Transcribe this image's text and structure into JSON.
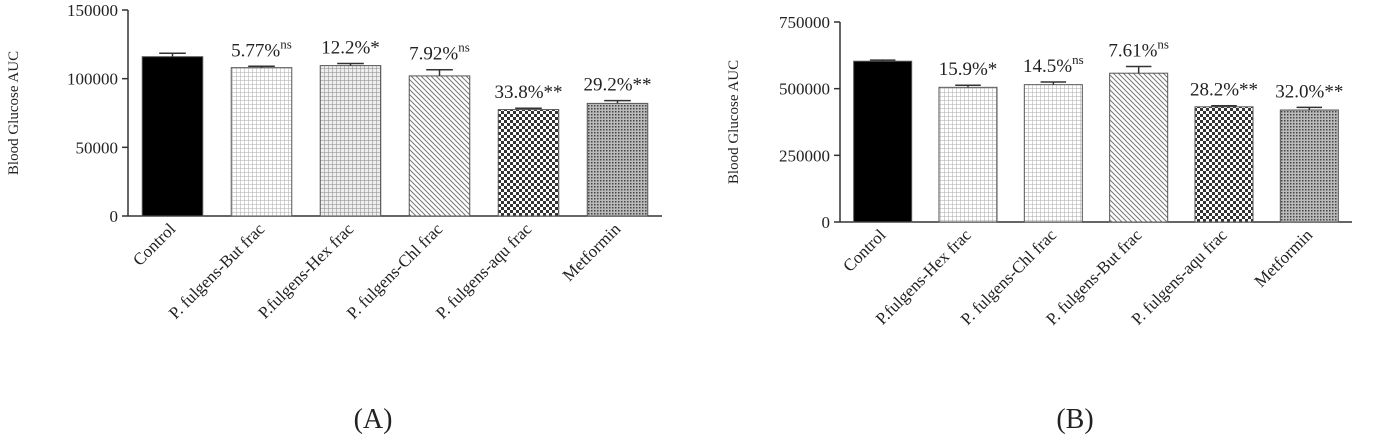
{
  "chart_data": [
    {
      "type": "bar",
      "caption": "(A)",
      "y_label": "Blood Glucose AUC",
      "categories": [
        "Control",
        "P. fulgens-But frac",
        "P.fulgens-Hex  frac",
        "P. fulgens-Chl frac",
        "P. fulgens-aqu frac",
        "Metformin"
      ],
      "values": [
        116000,
        108000,
        109500,
        102000,
        77500,
        82000
      ],
      "errors": [
        2500,
        1000,
        1500,
        4500,
        1000,
        2000
      ],
      "fills": [
        "solid",
        "fine-grid",
        "grid",
        "diagonal",
        "checker",
        "dots"
      ],
      "annotations": [
        null,
        {
          "text": "5.77%",
          "sup": "ns"
        },
        {
          "text": "12.2%*"
        },
        {
          "text": "7.92%",
          "sup": "ns"
        },
        {
          "text": "33.8%**"
        },
        {
          "text": "29.2%**"
        }
      ],
      "ylim": [
        0,
        150000
      ],
      "yticks": [
        0,
        50000,
        100000,
        150000
      ]
    },
    {
      "type": "bar",
      "caption": "(B)",
      "y_label": "Blood Glucose AUC",
      "categories": [
        "Control",
        "P.fulgens-Hex  frac",
        "P. fulgens-Chl frac",
        "P. fulgens-But frac",
        "P. fulgens-aqu frac",
        "Metformin"
      ],
      "values": [
        603000,
        505000,
        515000,
        558000,
        432000,
        420000
      ],
      "errors": [
        4000,
        8000,
        10000,
        25000,
        4000,
        10000
      ],
      "fills": [
        "solid",
        "fine-grid",
        "fine-grid",
        "diagonal",
        "checker",
        "dots"
      ],
      "annotations": [
        null,
        {
          "text": "15.9%*"
        },
        {
          "text": "14.5%",
          "sup": "ns"
        },
        {
          "text": "7.61%",
          "sup": "ns"
        },
        {
          "text": "28.2%**"
        },
        {
          "text": "32.0%**"
        }
      ],
      "ylim": [
        0,
        750000
      ],
      "yticks": [
        0,
        250000,
        500000,
        750000
      ]
    }
  ]
}
